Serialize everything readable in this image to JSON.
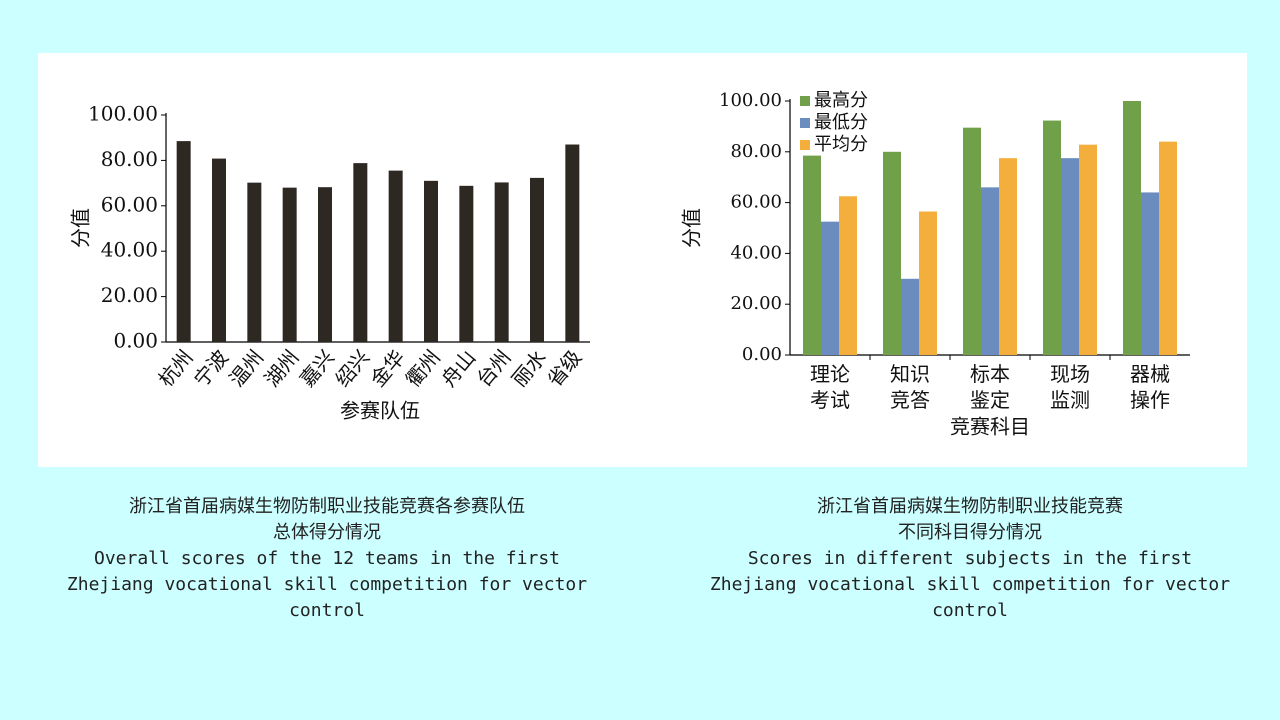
{
  "chart_data": [
    {
      "type": "bar",
      "x_label": "参赛队伍",
      "y_label": "分值",
      "categories": [
        "杭州",
        "宁波",
        "温州",
        "湖州",
        "嘉兴",
        "绍兴",
        "金华",
        "衢州",
        "舟山",
        "台州",
        "丽水",
        "省级"
      ],
      "values": [
        88.5,
        80.8,
        70.2,
        68,
        68.2,
        78.8,
        75.5,
        71,
        68.8,
        70.3,
        72.3,
        87
      ],
      "color": "#2e2823",
      "ylim": [
        0,
        100
      ],
      "yticks": [
        {
          "value": 0,
          "label": "0.00"
        },
        {
          "value": 20,
          "label": "20.00"
        },
        {
          "value": 40,
          "label": "40.00"
        },
        {
          "value": 60,
          "label": "60.00"
        },
        {
          "value": 80,
          "label": "80.00"
        },
        {
          "value": 100,
          "label": "100.00"
        }
      ]
    },
    {
      "type": "grouped_bar",
      "x_label": "竞赛科目",
      "y_label": "分值",
      "categories": [
        "理论考试",
        "知识竞答",
        "标本鉴定",
        "现场监测",
        "器械操作"
      ],
      "series": [
        {
          "name": "最高分",
          "color": "#70a04a",
          "values": [
            78.5,
            80,
            89.5,
            92.3,
            100
          ]
        },
        {
          "name": "最低分",
          "color": "#6b8cbf",
          "values": [
            52.5,
            30,
            66,
            77.5,
            64
          ]
        },
        {
          "name": "平均分",
          "color": "#f4ae3c",
          "values": [
            62.5,
            56.5,
            77.5,
            82.8,
            84
          ]
        }
      ],
      "legend": "upper left",
      "ylim": [
        0,
        100
      ],
      "yticks": [
        {
          "value": 0,
          "label": "0.00"
        },
        {
          "value": 20,
          "label": "20.00"
        },
        {
          "value": 40,
          "label": "40.00"
        },
        {
          "value": 60,
          "label": "60.00"
        },
        {
          "value": 80,
          "label": "80.00"
        },
        {
          "value": 100,
          "label": "100.00"
        }
      ]
    }
  ],
  "captions": [
    [
      "浙江省首届病媒生物防制职业技能竞赛各参赛队伍",
      "总体得分情况",
      "Overall scores of the 12 teams in the first",
      "Zhejiang vocational skill competition for vector",
      "control"
    ],
    [
      "浙江省首届病媒生物防制职业技能竞赛",
      "不同科目得分情况",
      "Scores in different subjects in the first",
      "Zhejiang vocational skill competition for vector",
      "control"
    ]
  ]
}
